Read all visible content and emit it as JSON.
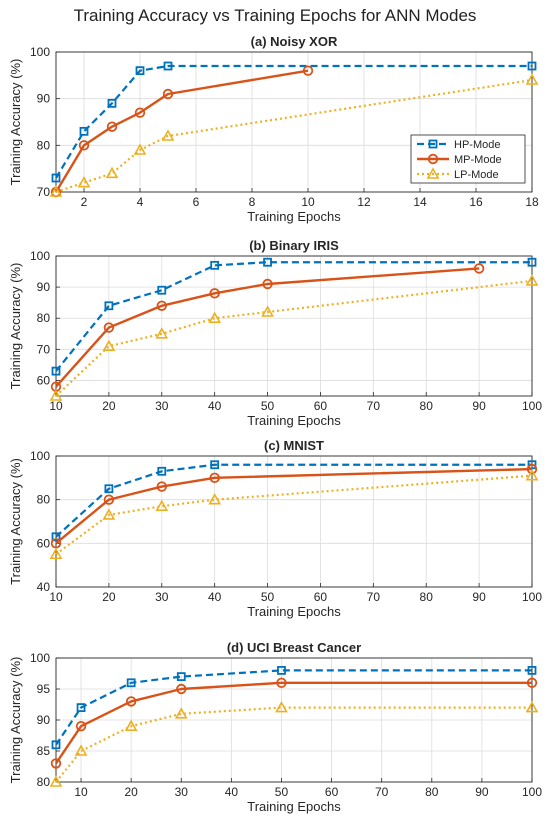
{
  "figure": {
    "title": "Training Accuracy vs Training Epochs for ANN Modes"
  },
  "series_styles": [
    {
      "name": "HP-Mode",
      "color": "#0072BD",
      "dash": "7,4",
      "marker": "square",
      "width": 2.2
    },
    {
      "name": "MP-Mode",
      "color": "#D95319",
      "dash": "",
      "marker": "circle",
      "width": 2.4
    },
    {
      "name": "LP-Mode",
      "color": "#EDB120",
      "dash": "2,3",
      "marker": "triangle",
      "width": 2.2
    }
  ],
  "chart_data": [
    {
      "type": "line",
      "title": "(a) Noisy XOR",
      "xlabel": "Training Epochs",
      "ylabel": "Training Accuracy (%)",
      "xlim": [
        1,
        18
      ],
      "ylim": [
        70,
        100
      ],
      "xticks": [
        2,
        4,
        6,
        8,
        10,
        12,
        14,
        16,
        18
      ],
      "yticks": [
        70,
        80,
        90,
        100
      ],
      "grid": true,
      "legend": "right",
      "series": [
        {
          "name": "HP-Mode",
          "x": [
            1,
            2,
            3,
            4,
            5,
            18
          ],
          "y": [
            73,
            83,
            89,
            96,
            97,
            97
          ]
        },
        {
          "name": "MP-Mode",
          "x": [
            1,
            2,
            3,
            4,
            5,
            10
          ],
          "y": [
            70,
            80,
            84,
            87,
            91,
            96
          ]
        },
        {
          "name": "LP-Mode",
          "x": [
            1,
            2,
            3,
            4,
            5,
            18
          ],
          "y": [
            70,
            72,
            74,
            79,
            82,
            94
          ]
        }
      ]
    },
    {
      "type": "line",
      "title": "(b) Binary IRIS",
      "xlabel": "Training Epochs",
      "ylabel": "Training Accuracy (%)",
      "xlim": [
        10,
        100
      ],
      "ylim": [
        55,
        100
      ],
      "xticks": [
        10,
        20,
        30,
        40,
        50,
        60,
        70,
        80,
        90,
        100
      ],
      "yticks": [
        60,
        70,
        80,
        90,
        100
      ],
      "grid": true,
      "series": [
        {
          "name": "HP-Mode",
          "x": [
            10,
            20,
            30,
            40,
            50,
            100
          ],
          "y": [
            63,
            84,
            89,
            97,
            98,
            98
          ]
        },
        {
          "name": "MP-Mode",
          "x": [
            10,
            20,
            30,
            40,
            50,
            90
          ],
          "y": [
            58,
            77,
            84,
            88,
            91,
            96
          ]
        },
        {
          "name": "LP-Mode",
          "x": [
            10,
            20,
            30,
            40,
            50,
            100
          ],
          "y": [
            55,
            71,
            75,
            80,
            82,
            92
          ]
        }
      ]
    },
    {
      "type": "line",
      "title": "(c) MNIST",
      "xlabel": "Training Epochs",
      "ylabel": "Training Accuracy (%)",
      "xlim": [
        10,
        100
      ],
      "ylim": [
        40,
        100
      ],
      "xticks": [
        10,
        20,
        30,
        40,
        50,
        60,
        70,
        80,
        90,
        100
      ],
      "yticks": [
        40,
        60,
        80,
        100
      ],
      "grid": true,
      "series": [
        {
          "name": "HP-Mode",
          "x": [
            10,
            20,
            30,
            40,
            100
          ],
          "y": [
            63,
            85,
            93,
            96,
            96
          ]
        },
        {
          "name": "MP-Mode",
          "x": [
            10,
            20,
            30,
            40,
            100
          ],
          "y": [
            60,
            80,
            86,
            90,
            94
          ]
        },
        {
          "name": "LP-Mode",
          "x": [
            10,
            20,
            30,
            40,
            100
          ],
          "y": [
            55,
            73,
            77,
            80,
            91
          ]
        }
      ]
    },
    {
      "type": "line",
      "title": "(d) UCI Breast Cancer",
      "xlabel": "Training Epochs",
      "ylabel": "Training Accuracy (%)",
      "xlim": [
        5,
        100
      ],
      "ylim": [
        80,
        100
      ],
      "xticks": [
        10,
        20,
        30,
        40,
        50,
        60,
        70,
        80,
        90,
        100
      ],
      "yticks": [
        80,
        85,
        90,
        95,
        100
      ],
      "grid": true,
      "series": [
        {
          "name": "HP-Mode",
          "x": [
            5,
            10,
            20,
            30,
            50,
            100
          ],
          "y": [
            86,
            92,
            96,
            97,
            98,
            98
          ]
        },
        {
          "name": "MP-Mode",
          "x": [
            5,
            10,
            20,
            30,
            50,
            100
          ],
          "y": [
            83,
            89,
            93,
            95,
            96,
            96
          ]
        },
        {
          "name": "LP-Mode",
          "x": [
            5,
            10,
            20,
            30,
            50,
            100
          ],
          "y": [
            80,
            85,
            89,
            91,
            92,
            92
          ]
        }
      ]
    }
  ]
}
